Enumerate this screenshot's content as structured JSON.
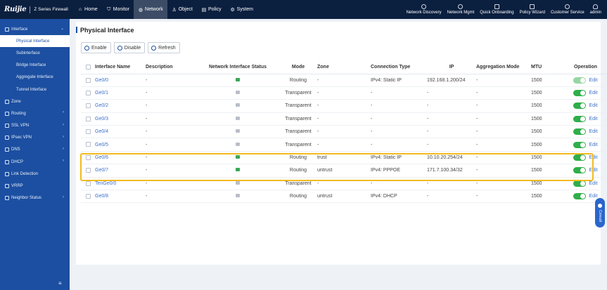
{
  "brand": {
    "logo": "Ruijie",
    "product": "Z Series Firewall"
  },
  "topnav": [
    {
      "label": "Home",
      "icon": "home-icon",
      "active": false
    },
    {
      "label": "Monitor",
      "icon": "shield-icon",
      "active": false
    },
    {
      "label": "Network",
      "icon": "globe-icon",
      "active": true
    },
    {
      "label": "Object",
      "icon": "user-icon",
      "active": false
    },
    {
      "label": "Policy",
      "icon": "document-icon",
      "active": false
    },
    {
      "label": "System",
      "icon": "gear-icon",
      "active": false
    }
  ],
  "topright": [
    {
      "label": "Network Discovery",
      "icon": "discovery-icon"
    },
    {
      "label": "Network Mgmt",
      "icon": "cloud-icon"
    },
    {
      "label": "Quick Onboarding",
      "icon": "onboarding-icon"
    },
    {
      "label": "Policy Wizard",
      "icon": "wizard-icon"
    },
    {
      "label": "Customer Service",
      "icon": "headset-icon"
    },
    {
      "label": "admin",
      "icon": "user-icon"
    }
  ],
  "sidebar": {
    "items": [
      {
        "label": "Interface",
        "level": 0,
        "chevron": "⌄",
        "active": false
      },
      {
        "label": "Physical Interface",
        "level": 1,
        "chevron": "",
        "active": true
      },
      {
        "label": "Subinterface",
        "level": 1,
        "chevron": "",
        "active": false
      },
      {
        "label": "Bridge Interface",
        "level": 1,
        "chevron": "",
        "active": false
      },
      {
        "label": "Aggregate Interface",
        "level": 1,
        "chevron": "",
        "active": false
      },
      {
        "label": "Tunnel Interface",
        "level": 1,
        "chevron": "",
        "active": false
      },
      {
        "label": "Zone",
        "level": 0,
        "chevron": "",
        "active": false
      },
      {
        "label": "Routing",
        "level": 0,
        "chevron": "›",
        "active": false
      },
      {
        "label": "SSL VPN",
        "level": 0,
        "chevron": "›",
        "active": false
      },
      {
        "label": "IPsec VPN",
        "level": 0,
        "chevron": "›",
        "active": false
      },
      {
        "label": "DNS",
        "level": 0,
        "chevron": "›",
        "active": false
      },
      {
        "label": "DHCP",
        "level": 0,
        "chevron": "›",
        "active": false
      },
      {
        "label": "Link Detection",
        "level": 0,
        "chevron": "",
        "active": false
      },
      {
        "label": "VRRP",
        "level": 0,
        "chevron": "",
        "active": false
      },
      {
        "label": "Neighbor Status",
        "level": 0,
        "chevron": "›",
        "active": false
      }
    ],
    "collapse_icon": "≡"
  },
  "page": {
    "title": "Physical Interface"
  },
  "toolbar": {
    "enable": "Enable",
    "disable": "Disable",
    "refresh": "Refresh"
  },
  "table": {
    "headers": [
      "Interface Name",
      "Description",
      "Network Interface Status",
      "Mode",
      "Zone",
      "Connection Type",
      "IP",
      "Aggregation Mode",
      "MTU",
      "Operation"
    ],
    "edit_label": "Edit",
    "rows": [
      {
        "name": "Ge0/0",
        "desc": "-",
        "status": "up",
        "mode": "Routing",
        "zone": "-",
        "conn": "IPv4: Static IP",
        "ip": "192.168.1.200/24",
        "agg": "-",
        "mtu": "1500",
        "enabled": true,
        "dim": true
      },
      {
        "name": "Ge0/1",
        "desc": "-",
        "status": "down",
        "mode": "Transparent",
        "zone": "-",
        "conn": "-",
        "ip": "-",
        "agg": "-",
        "mtu": "1500",
        "enabled": true,
        "dim": false
      },
      {
        "name": "Ge0/2",
        "desc": "-",
        "status": "down",
        "mode": "Transparent",
        "zone": "-",
        "conn": "-",
        "ip": "-",
        "agg": "-",
        "mtu": "1500",
        "enabled": true,
        "dim": false
      },
      {
        "name": "Ge0/3",
        "desc": "-",
        "status": "down",
        "mode": "Transparent",
        "zone": "-",
        "conn": "-",
        "ip": "-",
        "agg": "-",
        "mtu": "1500",
        "enabled": true,
        "dim": false
      },
      {
        "name": "Ge0/4",
        "desc": "-",
        "status": "down",
        "mode": "Transparent",
        "zone": "-",
        "conn": "-",
        "ip": "-",
        "agg": "-",
        "mtu": "1500",
        "enabled": true,
        "dim": false
      },
      {
        "name": "Ge0/5",
        "desc": "-",
        "status": "down",
        "mode": "Transparent",
        "zone": "-",
        "conn": "-",
        "ip": "-",
        "agg": "-",
        "mtu": "1500",
        "enabled": true,
        "dim": false
      },
      {
        "name": "Ge0/6",
        "desc": "-",
        "status": "up",
        "mode": "Routing",
        "zone": "trust",
        "conn": "IPv4: Static IP",
        "ip": "10.10.20.254/24",
        "agg": "-",
        "mtu": "1500",
        "enabled": true,
        "dim": false
      },
      {
        "name": "Ge0/7",
        "desc": "-",
        "status": "up",
        "mode": "Routing",
        "zone": "untrust",
        "conn": "IPv4: PPPOE",
        "ip": "171.7.100.34/32",
        "agg": "-",
        "mtu": "1500",
        "enabled": true,
        "dim": false
      },
      {
        "name": "TenGe0/0",
        "desc": "-",
        "status": "down",
        "mode": "Transparent",
        "zone": "-",
        "conn": "-",
        "ip": "-",
        "agg": "-",
        "mtu": "1500",
        "enabled": true,
        "dim": false
      },
      {
        "name": "Ge0/8",
        "desc": "-",
        "status": "down",
        "mode": "Routing",
        "zone": "untrust",
        "conn": "IPv4: DHCP",
        "ip": "-",
        "agg": "-",
        "mtu": "1500",
        "enabled": true,
        "dim": false
      }
    ]
  },
  "contact": {
    "label": "Consult"
  },
  "colors": {
    "topbar": "#0b1f3f",
    "sidebar": "#1c4fa1",
    "accent": "#3b6fc9",
    "toggle_on": "#2fae4a",
    "highlight": "#f2bb20"
  }
}
